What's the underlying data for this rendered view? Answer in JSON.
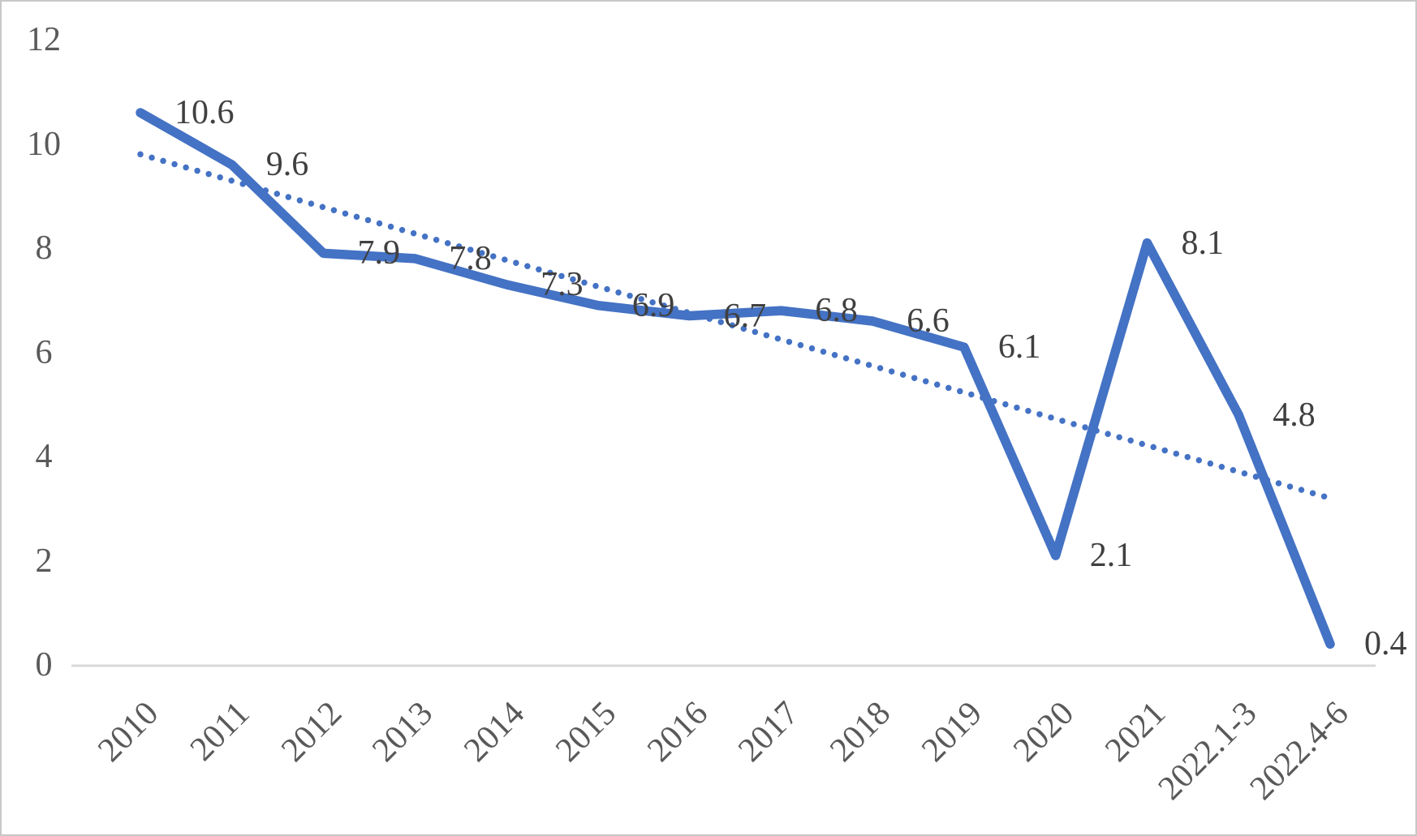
{
  "chart_data": {
    "type": "line",
    "title": "",
    "xlabel": "",
    "ylabel": "",
    "categories": [
      "2010",
      "2011",
      "2012",
      "2013",
      "2014",
      "2015",
      "2016",
      "2017",
      "2018",
      "2019",
      "2020",
      "2021",
      "2022.1-3",
      "2022.4-6"
    ],
    "values": [
      10.6,
      9.6,
      7.9,
      7.8,
      7.3,
      6.9,
      6.7,
      6.8,
      6.6,
      6.1,
      2.1,
      8.1,
      4.8,
      0.4
    ],
    "data_labels": [
      "10.6",
      "9.6",
      "7.9",
      "7.8",
      "7.3",
      "6.9",
      "6.7",
      "6.8",
      "6.6",
      "6.1",
      "2.1",
      "8.1",
      "4.8",
      "0.4"
    ],
    "trendline": {
      "type": "linear",
      "style": "dotted",
      "start_value": 9.8,
      "end_value": 3.2
    },
    "yticks": [
      "12",
      "10",
      "8",
      "6",
      "4",
      "2",
      "0"
    ],
    "ytick_values": [
      12,
      10,
      8,
      6,
      4,
      2,
      0
    ],
    "ylim": [
      0,
      12
    ],
    "grid": false,
    "legend": "none",
    "colors": {
      "series": "#4472C4",
      "trendline": "#4472C4",
      "data_label": "#404040",
      "axis_label": "#595959",
      "axis_line": "#D9D9D9",
      "border": "#C8C8C8",
      "background": "#FFFFFF"
    }
  }
}
